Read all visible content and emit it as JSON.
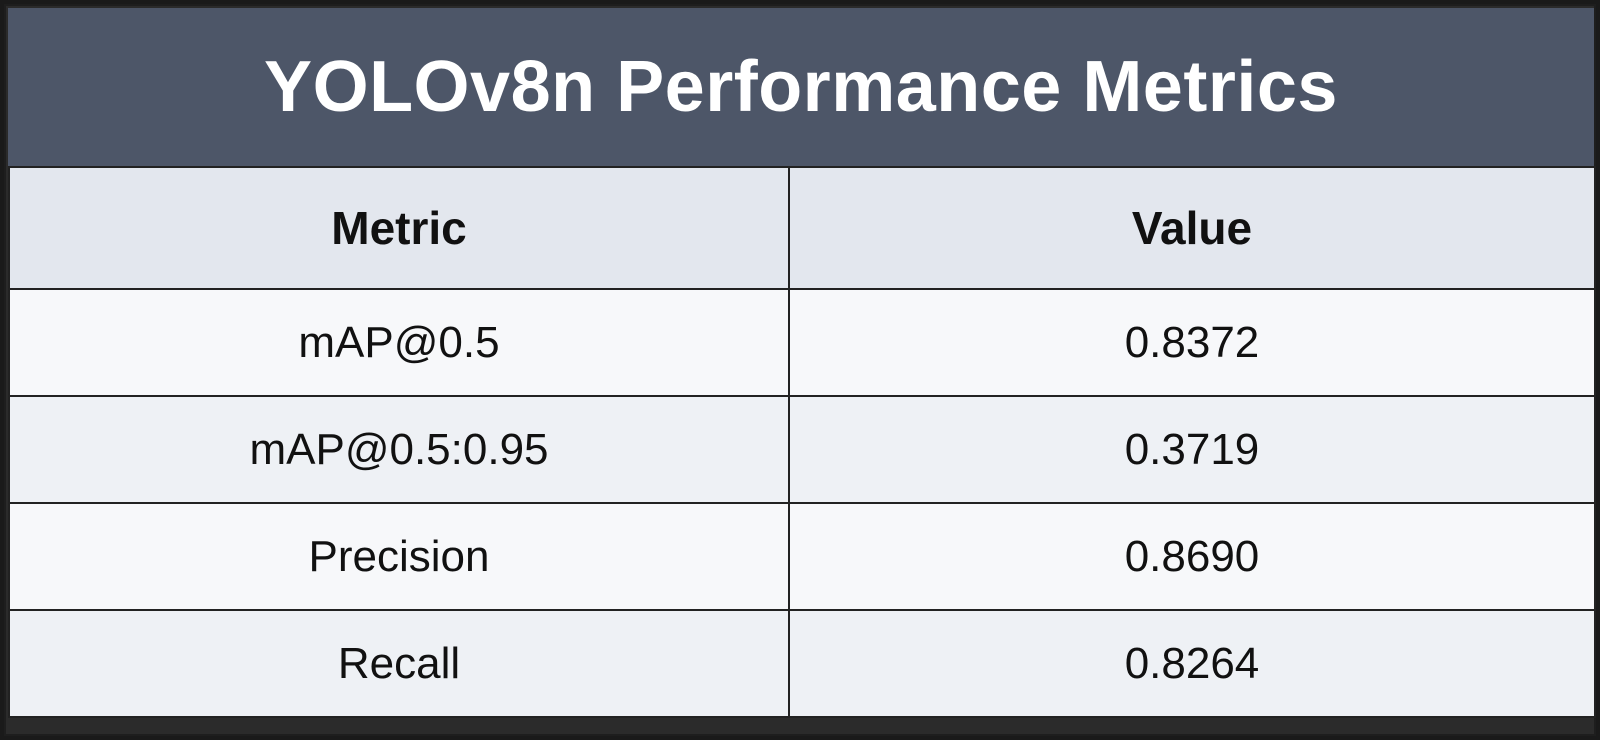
{
  "title": "YOLOv8n Performance Metrics",
  "colors": {
    "title_bar": "#4d5668",
    "header_row": "#e3e7ee",
    "row_light": "#f7f8fa",
    "row_alt": "#eef1f5",
    "border": "#222222"
  },
  "table": {
    "headers": [
      "Metric",
      "Value"
    ],
    "rows": [
      {
        "metric": "mAP@0.5",
        "value": "0.8372"
      },
      {
        "metric": "mAP@0.5:0.95",
        "value": "0.3719"
      },
      {
        "metric": "Precision",
        "value": "0.8690"
      },
      {
        "metric": "Recall",
        "value": "0.8264"
      }
    ]
  }
}
